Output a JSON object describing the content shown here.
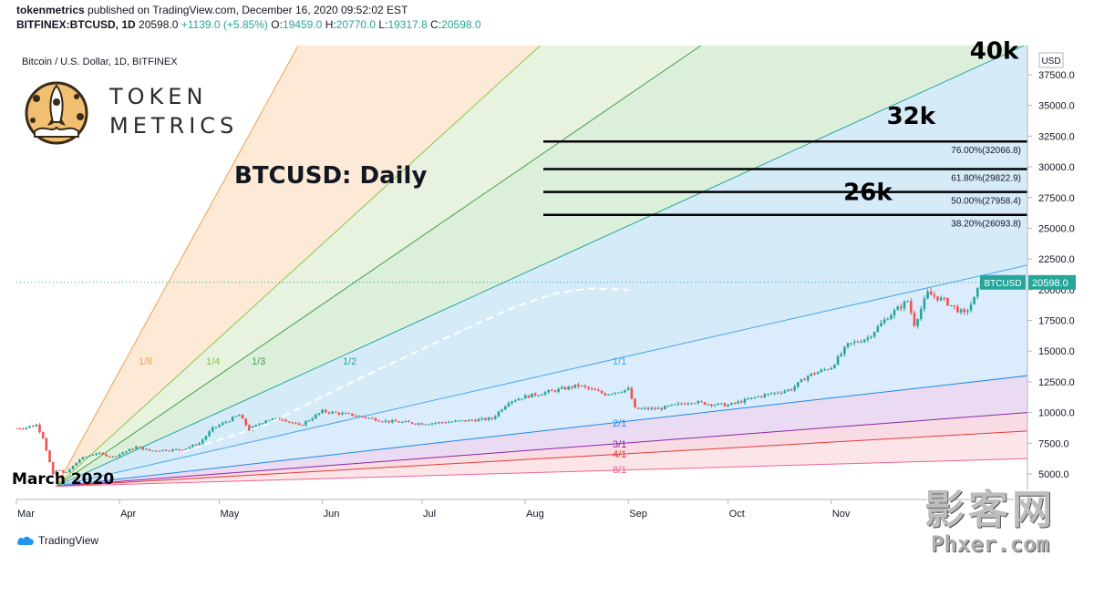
{
  "header": {
    "publisher_line": "tokenmetrics",
    "publisher_suffix": "published on TradingView.com, December 16, 2020 09:52:02 EST",
    "symbol": "BITFINEX:BTCUSD, 1D",
    "last": "20598.0",
    "change": "+1139.0 (+5.85%)",
    "o_label": "O:",
    "o": "19459.0",
    "h_label": "H:",
    "h": "20770.0",
    "l_label": "L:",
    "l": "19317.8",
    "c_label": "C:",
    "c": "20598.0"
  },
  "brand": {
    "line1": "TOKEN",
    "line2": "METRICS"
  },
  "footer": {
    "tradingview": "TradingView"
  },
  "watermark": {
    "cn": "影客网",
    "en": "Phxer.com"
  },
  "colors": {
    "up": "#26a69a",
    "down": "#ef5350",
    "fan_orange": "#f7c08a",
    "fan_green": "#66bb6a",
    "fan_blue": "#2196f3",
    "fan_purple": "#ab47bc",
    "fan_red": "#ef5350",
    "price_tag": "#26a69a"
  },
  "chart_data": {
    "type": "candlestick",
    "title": "Bitcoin / U.S. Dollar, 1D, BITFINEX",
    "headline": "BTCUSD: Daily",
    "currency": "USD",
    "ylim": [
      3600,
      40000
    ],
    "y_ticks": [
      5000,
      7500,
      10000,
      12500,
      15000,
      17500,
      20000,
      22500,
      25000,
      27500,
      30000,
      32500,
      35000,
      37500
    ],
    "y_tick_labels": [
      "5000.0",
      "7500.0",
      "10000.0",
      "12500.0",
      "15000.0",
      "17500.0",
      "20000.0",
      "22500.0",
      "25000.0",
      "27500.0",
      "30000.0",
      "32500.0",
      "35000.0",
      "37500.0"
    ],
    "x_range": [
      "2020-03-01",
      "2020-12-30"
    ],
    "x_ticks": [
      {
        "label": "Mar",
        "date": "2020-03-01"
      },
      {
        "label": "Apr",
        "date": "2020-04-01"
      },
      {
        "label": "May",
        "date": "2020-05-01"
      },
      {
        "label": "Jun",
        "date": "2020-06-01"
      },
      {
        "label": "Jul",
        "date": "2020-07-01"
      },
      {
        "label": "Aug",
        "date": "2020-08-01"
      },
      {
        "label": "Sep",
        "date": "2020-09-01"
      },
      {
        "label": "Oct",
        "date": "2020-10-01"
      },
      {
        "label": "Nov",
        "date": "2020-11-01"
      },
      {
        "label": "Dec",
        "date": "2020-12-01"
      }
    ],
    "last_price": {
      "label": "BTCUSD",
      "value": "20598.0"
    },
    "price_path": [
      [
        "2020-03-01",
        8700
      ],
      [
        "2020-03-04",
        8800
      ],
      [
        "2020-03-07",
        9000
      ],
      [
        "2020-03-09",
        8000
      ],
      [
        "2020-03-12",
        4900
      ],
      [
        "2020-03-13",
        5300
      ],
      [
        "2020-03-16",
        5100
      ],
      [
        "2020-03-20",
        6200
      ],
      [
        "2020-03-25",
        6700
      ],
      [
        "2020-03-30",
        6400
      ],
      [
        "2020-04-06",
        7200
      ],
      [
        "2020-04-10",
        6900
      ],
      [
        "2020-04-20",
        7000
      ],
      [
        "2020-04-25",
        7500
      ],
      [
        "2020-04-29",
        8700
      ],
      [
        "2020-05-07",
        9800
      ],
      [
        "2020-05-10",
        8600
      ],
      [
        "2020-05-15",
        9400
      ],
      [
        "2020-05-20",
        9500
      ],
      [
        "2020-05-25",
        8900
      ],
      [
        "2020-06-01",
        10100
      ],
      [
        "2020-06-10",
        9800
      ],
      [
        "2020-06-20",
        9300
      ],
      [
        "2020-07-01",
        9100
      ],
      [
        "2020-07-10",
        9250
      ],
      [
        "2020-07-22",
        9500
      ],
      [
        "2020-07-27",
        10900
      ],
      [
        "2020-08-01",
        11300
      ],
      [
        "2020-08-10",
        11800
      ],
      [
        "2020-08-17",
        12200
      ],
      [
        "2020-08-25",
        11500
      ],
      [
        "2020-09-01",
        11900
      ],
      [
        "2020-09-03",
        10300
      ],
      [
        "2020-09-10",
        10300
      ],
      [
        "2020-09-20",
        10900
      ],
      [
        "2020-09-25",
        10700
      ],
      [
        "2020-10-01",
        10600
      ],
      [
        "2020-10-10",
        11300
      ],
      [
        "2020-10-20",
        11900
      ],
      [
        "2020-10-25",
        13000
      ],
      [
        "2020-11-01",
        13700
      ],
      [
        "2020-11-06",
        15500
      ],
      [
        "2020-11-12",
        16100
      ],
      [
        "2020-11-18",
        17800
      ],
      [
        "2020-11-24",
        19100
      ],
      [
        "2020-11-26",
        17200
      ],
      [
        "2020-11-30",
        19700
      ],
      [
        "2020-12-05",
        19100
      ],
      [
        "2020-12-11",
        18000
      ],
      [
        "2020-12-14",
        19250
      ],
      [
        "2020-12-16",
        20598
      ]
    ],
    "gann_fan": {
      "origin": {
        "date": "2020-03-13",
        "price": 4000
      },
      "anchor_1x1": {
        "date": "2020-12-30",
        "price": 22000
      },
      "lines": [
        {
          "label": "1/8",
          "ratio": 0.125,
          "color": "#f0a050"
        },
        {
          "label": "1/4",
          "ratio": 0.25,
          "color": "#8bc34a"
        },
        {
          "label": "1/3",
          "ratio": 0.333,
          "color": "#43a047"
        },
        {
          "label": "1/2",
          "ratio": 0.5,
          "color": "#26a69a"
        },
        {
          "label": "1/1",
          "ratio": 1,
          "color": "#42a5f5"
        },
        {
          "label": "2/1",
          "ratio": 2,
          "color": "#1e88e5"
        },
        {
          "label": "3/1",
          "ratio": 3,
          "color": "#8e24aa"
        },
        {
          "label": "4/1",
          "ratio": 4,
          "color": "#e53935"
        },
        {
          "label": "8/1",
          "ratio": 8,
          "color": "#f06292"
        }
      ]
    },
    "fib_levels": [
      {
        "label": "76.00%(32066.8)",
        "value": 32066.8
      },
      {
        "label": "61.80%(29822.9)",
        "value": 29822.9
      },
      {
        "label": "50.00%(27958.4)",
        "value": 27958.4
      },
      {
        "label": "38.20%(26093.8)",
        "value": 26093.8
      }
    ],
    "annotations": [
      {
        "text": "40k",
        "date": "2020-12-20",
        "price": 38800
      },
      {
        "text": "32k",
        "date": "2020-11-25",
        "price": 33500
      },
      {
        "text": "26k",
        "date": "2020-11-12",
        "price": 27300
      },
      {
        "text": "March 2020",
        "date": "2020-03-15",
        "price": 4200
      }
    ],
    "dashed_projection": [
      [
        "2020-04-20",
        6800
      ],
      [
        "2020-05-15",
        9000
      ],
      [
        "2020-06-10",
        12500
      ],
      [
        "2020-07-10",
        16300
      ],
      [
        "2020-07-28",
        18500
      ],
      [
        "2020-08-10",
        19700
      ],
      [
        "2020-08-20",
        20100
      ],
      [
        "2020-09-01",
        20000
      ]
    ]
  }
}
